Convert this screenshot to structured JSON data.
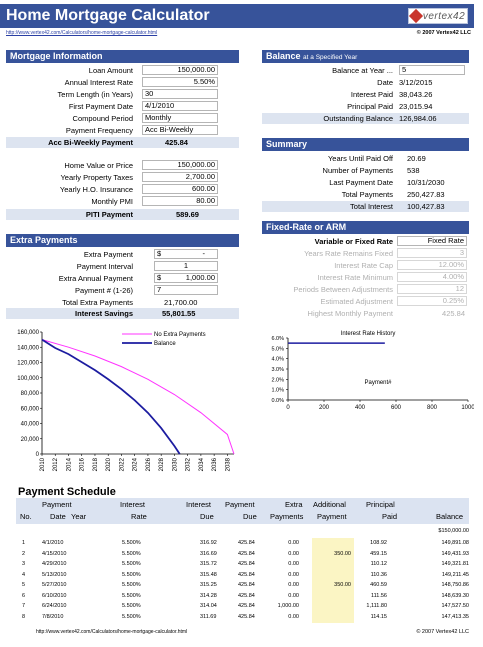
{
  "header": {
    "title": "Home Mortgage Calculator",
    "logo_text": "vertex42",
    "url": "http://www.vertex42.com/Calculators/home-mortgage-calculator.html",
    "copyright": "© 2007 Vertex42 LLC"
  },
  "mortgage_info": {
    "title": "Mortgage Information",
    "rows": [
      {
        "label": "Loan Amount",
        "value": "150,000.00"
      },
      {
        "label": "Annual Interest Rate",
        "value": "5.50%"
      },
      {
        "label": "Term Length (in Years)",
        "value": "30"
      },
      {
        "label": "First Payment Date",
        "value": "4/1/2010"
      },
      {
        "label": "Compound Period",
        "value": "Monthly"
      },
      {
        "label": "Payment Frequency",
        "value": "Acc Bi-Weekly"
      }
    ],
    "result_label": "Acc Bi-Weekly Payment",
    "result_value": "425.84"
  },
  "home_costs": {
    "rows": [
      {
        "label": "Home Value or Price",
        "value": "150,000.00"
      },
      {
        "label": "Yearly Property Taxes",
        "value": "2,700.00"
      },
      {
        "label": "Yearly H.O. Insurance",
        "value": "600.00"
      },
      {
        "label": "Monthly PMI",
        "value": "80.00"
      }
    ],
    "result_label": "PITI Payment",
    "result_value": "589.69"
  },
  "extra_payments": {
    "title": "Extra Payments",
    "extra_payment_label": "Extra Payment",
    "extra_payment_currency": "$",
    "extra_payment_value": "-",
    "interval_label": "Payment Interval",
    "interval_value": "1",
    "annual_label": "Extra Annual Payment",
    "annual_currency": "$",
    "annual_value": "1,000.00",
    "payment_num_label": "Payment # (1-26)",
    "payment_num_value": "7",
    "total_label": "Total Extra Payments",
    "total_value": "21,700.00",
    "savings_label": "Interest Savings",
    "savings_value": "55,801.55"
  },
  "balance": {
    "title": "Balance",
    "title_suffix": "at a Specified Year",
    "rows": [
      {
        "label": "Balance at Year ...",
        "value": "5"
      },
      {
        "label": "Date",
        "value": "3/12/2015"
      },
      {
        "label": "Interest Paid",
        "value": "38,043.26"
      },
      {
        "label": "Principal Paid",
        "value": "23,015.94"
      },
      {
        "label": "Outstanding Balance",
        "value": "126,984.06"
      }
    ]
  },
  "summary": {
    "title": "Summary",
    "rows": [
      {
        "label": "Years Until Paid Off",
        "value": "20.69"
      },
      {
        "label": "Number of Payments",
        "value": "538"
      },
      {
        "label": "Last Payment Date",
        "value": "10/31/2030"
      },
      {
        "label": "Total Payments",
        "value": "250,427.83"
      },
      {
        "label": "Total Interest",
        "value": "100,427.83"
      }
    ]
  },
  "arm": {
    "title": "Fixed-Rate or ARM",
    "type_label": "Variable or Fixed Rate",
    "type_value": "Fixed Rate",
    "rows": [
      {
        "label": "Years Rate Remains Fixed",
        "value": "3"
      },
      {
        "label": "Interest Rate Cap",
        "value": "12.00%"
      },
      {
        "label": "Interest Rate Minimum",
        "value": "4.00%"
      },
      {
        "label": "Periods Between Adjustments",
        "value": "12"
      },
      {
        "label": "Estimated Adjustment",
        "value": "0.25%"
      },
      {
        "label": "Highest Monthly Payment",
        "value": "425.84"
      }
    ]
  },
  "chart_data": [
    {
      "type": "line",
      "title": "",
      "xlabel": "",
      "ylabel": "",
      "x_tick_labels": [
        "2010",
        "2012",
        "2014",
        "2016",
        "2018",
        "2020",
        "2022",
        "2024",
        "2026",
        "2028",
        "2030",
        "2032",
        "2034",
        "2036",
        "2038"
      ],
      "xlim": [
        2010,
        2039
      ],
      "ylim": [
        0,
        160000
      ],
      "y_tick_labels": [
        "0",
        "20,000",
        "40,000",
        "60,000",
        "80,000",
        "100,000",
        "120,000",
        "140,000",
        "160,000"
      ],
      "legend_placement": "top-right",
      "series": [
        {
          "name": "No Extra Payments",
          "color": "#ff33ff",
          "x": [
            2010,
            2014,
            2018,
            2022,
            2026,
            2030,
            2034,
            2038,
            2040
          ],
          "y": [
            150000,
            140100,
            128500,
            114600,
            97900,
            78000,
            54200,
            25600,
            0
          ]
        },
        {
          "name": "Balance",
          "color": "#1c1ca0",
          "x": [
            2010,
            2012,
            2014,
            2016,
            2018,
            2020,
            2022,
            2024,
            2026,
            2028,
            2030,
            2030.8
          ],
          "y": [
            150000,
            139000,
            131000,
            120500,
            110000,
            98000,
            85000,
            70500,
            54000,
            34000,
            10500,
            0
          ]
        }
      ]
    },
    {
      "type": "line",
      "title": "Interest Rate History",
      "xlabel": "Payment#",
      "ylabel": "",
      "xlim": [
        0,
        1000
      ],
      "ylim": [
        0,
        0.06
      ],
      "x_tick_labels": [
        "0",
        "200",
        "400",
        "600",
        "800",
        "1000"
      ],
      "y_tick_labels": [
        "0.0%",
        "1.0%",
        "2.0%",
        "3.0%",
        "4.0%",
        "5.0%",
        "6.0%"
      ],
      "series": [
        {
          "color": "#1c1ca0",
          "x": [
            1,
            538
          ],
          "y": [
            0.055,
            0.055
          ]
        }
      ]
    }
  ],
  "schedule": {
    "title": "Payment Schedule",
    "headers": {
      "no": "No.",
      "payment": "Payment",
      "date": "Date",
      "year": "Year",
      "interest": "Interest",
      "rate": "Rate",
      "interest2": "Interest",
      "due": "Due",
      "payment2": "Payment",
      "due2": "Due",
      "extra": "Extra",
      "payments": "Payments",
      "additional": "Additional",
      "payment3": "Payment",
      "principal": "Principal",
      "paid": "Paid",
      "balance": "Balance"
    },
    "initial_balance": "$150,000.00",
    "rows": [
      {
        "no": "1",
        "date": "4/1/2010",
        "rate": "5.500%",
        "interest": "316.92",
        "due": "425.84",
        "extra": "0.00",
        "additional": "",
        "principal": "108.92",
        "balance": "149,891.08"
      },
      {
        "no": "2",
        "date": "4/15/2010",
        "rate": "5.500%",
        "interest": "316.69",
        "due": "425.84",
        "extra": "0.00",
        "additional": "350.00",
        "principal": "459.15",
        "balance": "149,431.93"
      },
      {
        "no": "3",
        "date": "4/29/2010",
        "rate": "5.500%",
        "interest": "315.72",
        "due": "425.84",
        "extra": "0.00",
        "additional": "",
        "principal": "110.12",
        "balance": "149,321.81"
      },
      {
        "no": "4",
        "date": "5/13/2010",
        "rate": "5.500%",
        "interest": "315.48",
        "due": "425.84",
        "extra": "0.00",
        "additional": "",
        "principal": "110.36",
        "balance": "149,211.45"
      },
      {
        "no": "5",
        "date": "5/27/2010",
        "rate": "5.500%",
        "interest": "315.25",
        "due": "425.84",
        "extra": "0.00",
        "additional": "350.00",
        "principal": "460.59",
        "balance": "148,750.86"
      },
      {
        "no": "6",
        "date": "6/10/2010",
        "rate": "5.500%",
        "interest": "314.28",
        "due": "425.84",
        "extra": "0.00",
        "additional": "",
        "principal": "111.56",
        "balance": "148,639.30"
      },
      {
        "no": "7",
        "date": "6/24/2010",
        "rate": "5.500%",
        "interest": "314.04",
        "due": "425.84",
        "extra": "1,000.00",
        "additional": "",
        "principal": "1,111.80",
        "balance": "147,527.50"
      },
      {
        "no": "8",
        "date": "7/8/2010",
        "rate": "5.500%",
        "interest": "311.69",
        "due": "425.84",
        "extra": "0.00",
        "additional": "",
        "principal": "114.15",
        "balance": "147,413.35"
      }
    ]
  }
}
